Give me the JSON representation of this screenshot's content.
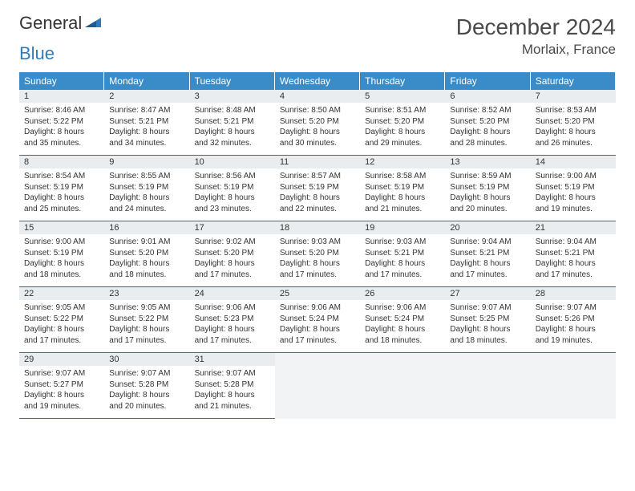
{
  "brand": {
    "part1": "General",
    "part2": "Blue"
  },
  "title": "December 2024",
  "location": "Morlaix, France",
  "colors": {
    "header_bg": "#3a8cc8",
    "header_text": "#ffffff",
    "daynum_bg": "#e9edef",
    "cell_border": "#2b6fa3",
    "page_bg": "#ffffff",
    "text": "#333333",
    "logo_gray": "#6d6d6d",
    "logo_blue": "#2f7bbf"
  },
  "daysOfWeek": [
    "Sunday",
    "Monday",
    "Tuesday",
    "Wednesday",
    "Thursday",
    "Friday",
    "Saturday"
  ],
  "days": [
    {
      "n": 1,
      "sunrise": "8:46 AM",
      "sunset": "5:22 PM",
      "daylight": "8 hours and 35 minutes."
    },
    {
      "n": 2,
      "sunrise": "8:47 AM",
      "sunset": "5:21 PM",
      "daylight": "8 hours and 34 minutes."
    },
    {
      "n": 3,
      "sunrise": "8:48 AM",
      "sunset": "5:21 PM",
      "daylight": "8 hours and 32 minutes."
    },
    {
      "n": 4,
      "sunrise": "8:50 AM",
      "sunset": "5:20 PM",
      "daylight": "8 hours and 30 minutes."
    },
    {
      "n": 5,
      "sunrise": "8:51 AM",
      "sunset": "5:20 PM",
      "daylight": "8 hours and 29 minutes."
    },
    {
      "n": 6,
      "sunrise": "8:52 AM",
      "sunset": "5:20 PM",
      "daylight": "8 hours and 28 minutes."
    },
    {
      "n": 7,
      "sunrise": "8:53 AM",
      "sunset": "5:20 PM",
      "daylight": "8 hours and 26 minutes."
    },
    {
      "n": 8,
      "sunrise": "8:54 AM",
      "sunset": "5:19 PM",
      "daylight": "8 hours and 25 minutes."
    },
    {
      "n": 9,
      "sunrise": "8:55 AM",
      "sunset": "5:19 PM",
      "daylight": "8 hours and 24 minutes."
    },
    {
      "n": 10,
      "sunrise": "8:56 AM",
      "sunset": "5:19 PM",
      "daylight": "8 hours and 23 minutes."
    },
    {
      "n": 11,
      "sunrise": "8:57 AM",
      "sunset": "5:19 PM",
      "daylight": "8 hours and 22 minutes."
    },
    {
      "n": 12,
      "sunrise": "8:58 AM",
      "sunset": "5:19 PM",
      "daylight": "8 hours and 21 minutes."
    },
    {
      "n": 13,
      "sunrise": "8:59 AM",
      "sunset": "5:19 PM",
      "daylight": "8 hours and 20 minutes."
    },
    {
      "n": 14,
      "sunrise": "9:00 AM",
      "sunset": "5:19 PM",
      "daylight": "8 hours and 19 minutes."
    },
    {
      "n": 15,
      "sunrise": "9:00 AM",
      "sunset": "5:19 PM",
      "daylight": "8 hours and 18 minutes."
    },
    {
      "n": 16,
      "sunrise": "9:01 AM",
      "sunset": "5:20 PM",
      "daylight": "8 hours and 18 minutes."
    },
    {
      "n": 17,
      "sunrise": "9:02 AM",
      "sunset": "5:20 PM",
      "daylight": "8 hours and 17 minutes."
    },
    {
      "n": 18,
      "sunrise": "9:03 AM",
      "sunset": "5:20 PM",
      "daylight": "8 hours and 17 minutes."
    },
    {
      "n": 19,
      "sunrise": "9:03 AM",
      "sunset": "5:21 PM",
      "daylight": "8 hours and 17 minutes."
    },
    {
      "n": 20,
      "sunrise": "9:04 AM",
      "sunset": "5:21 PM",
      "daylight": "8 hours and 17 minutes."
    },
    {
      "n": 21,
      "sunrise": "9:04 AM",
      "sunset": "5:21 PM",
      "daylight": "8 hours and 17 minutes."
    },
    {
      "n": 22,
      "sunrise": "9:05 AM",
      "sunset": "5:22 PM",
      "daylight": "8 hours and 17 minutes."
    },
    {
      "n": 23,
      "sunrise": "9:05 AM",
      "sunset": "5:22 PM",
      "daylight": "8 hours and 17 minutes."
    },
    {
      "n": 24,
      "sunrise": "9:06 AM",
      "sunset": "5:23 PM",
      "daylight": "8 hours and 17 minutes."
    },
    {
      "n": 25,
      "sunrise": "9:06 AM",
      "sunset": "5:24 PM",
      "daylight": "8 hours and 17 minutes."
    },
    {
      "n": 26,
      "sunrise": "9:06 AM",
      "sunset": "5:24 PM",
      "daylight": "8 hours and 18 minutes."
    },
    {
      "n": 27,
      "sunrise": "9:07 AM",
      "sunset": "5:25 PM",
      "daylight": "8 hours and 18 minutes."
    },
    {
      "n": 28,
      "sunrise": "9:07 AM",
      "sunset": "5:26 PM",
      "daylight": "8 hours and 19 minutes."
    },
    {
      "n": 29,
      "sunrise": "9:07 AM",
      "sunset": "5:27 PM",
      "daylight": "8 hours and 19 minutes."
    },
    {
      "n": 30,
      "sunrise": "9:07 AM",
      "sunset": "5:28 PM",
      "daylight": "8 hours and 20 minutes."
    },
    {
      "n": 31,
      "sunrise": "9:07 AM",
      "sunset": "5:28 PM",
      "daylight": "8 hours and 21 minutes."
    }
  ],
  "labels": {
    "sunrise": "Sunrise:",
    "sunset": "Sunset:",
    "daylight": "Daylight:"
  },
  "layout": {
    "startWeekday": 0,
    "trailingBlanks": 4,
    "cellFontSize": 10,
    "dowFontSize": 12,
    "titleFontSize": 28,
    "locationFontSize": 17
  }
}
